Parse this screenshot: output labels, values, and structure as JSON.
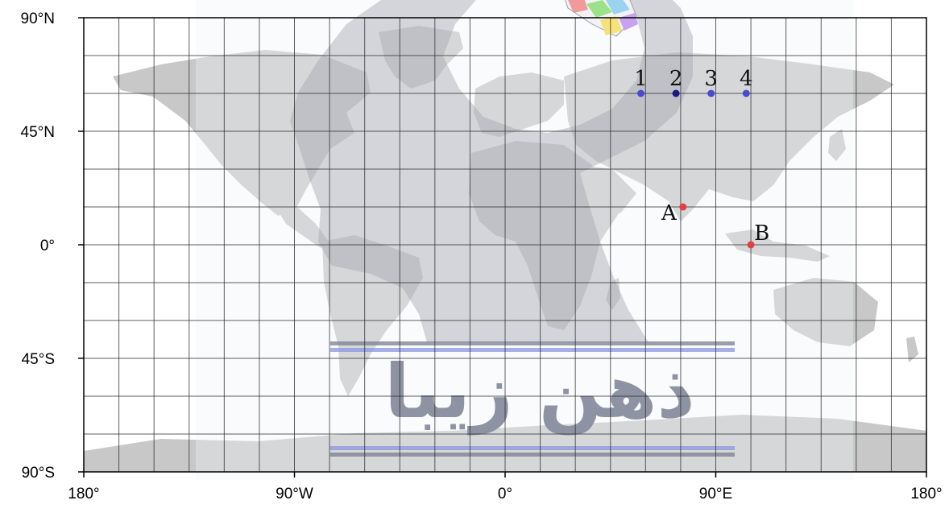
{
  "map": {
    "projection": "equirectangular",
    "lon_range": [
      -180,
      180
    ],
    "lat_range": [
      -90,
      90
    ],
    "grid_step_deg": 15,
    "x_ticks": [
      {
        "value": -180,
        "label": "180°"
      },
      {
        "value": -90,
        "label": "90°W"
      },
      {
        "value": 0,
        "label": "0°"
      },
      {
        "value": 90,
        "label": "90°E"
      },
      {
        "value": 180,
        "label": "180°"
      }
    ],
    "y_ticks": [
      {
        "value": 90,
        "label": "90°N"
      },
      {
        "value": 45,
        "label": "45°N"
      },
      {
        "value": 0,
        "label": "0°"
      },
      {
        "value": -45,
        "label": "45°S"
      },
      {
        "value": -90,
        "label": "90°S"
      }
    ],
    "colors": {
      "ocean": "#ffffff",
      "land": "#c8c8c8",
      "grid": "#2a2a2a",
      "blue_point": "#4a4ad0",
      "blue_point_dark": "#1a1a80",
      "red_point": "#e04040"
    },
    "points": [
      {
        "label": "1",
        "lon": 58,
        "lat": 60,
        "color": "#4a4ad0"
      },
      {
        "label": "2",
        "lon": 73,
        "lat": 60,
        "color": "#1a1a80"
      },
      {
        "label": "3",
        "lon": 88,
        "lat": 60,
        "color": "#4a4ad0"
      },
      {
        "label": "4",
        "lon": 103,
        "lat": 60,
        "color": "#4a4ad0"
      },
      {
        "label": "A",
        "lon": 76,
        "lat": 15,
        "color": "#e04040"
      },
      {
        "label": "B",
        "lon": 105,
        "lat": 0,
        "color": "#e04040"
      }
    ]
  },
  "watermark": {
    "text": "ذهن زیبا",
    "color": "#8e93a3"
  }
}
